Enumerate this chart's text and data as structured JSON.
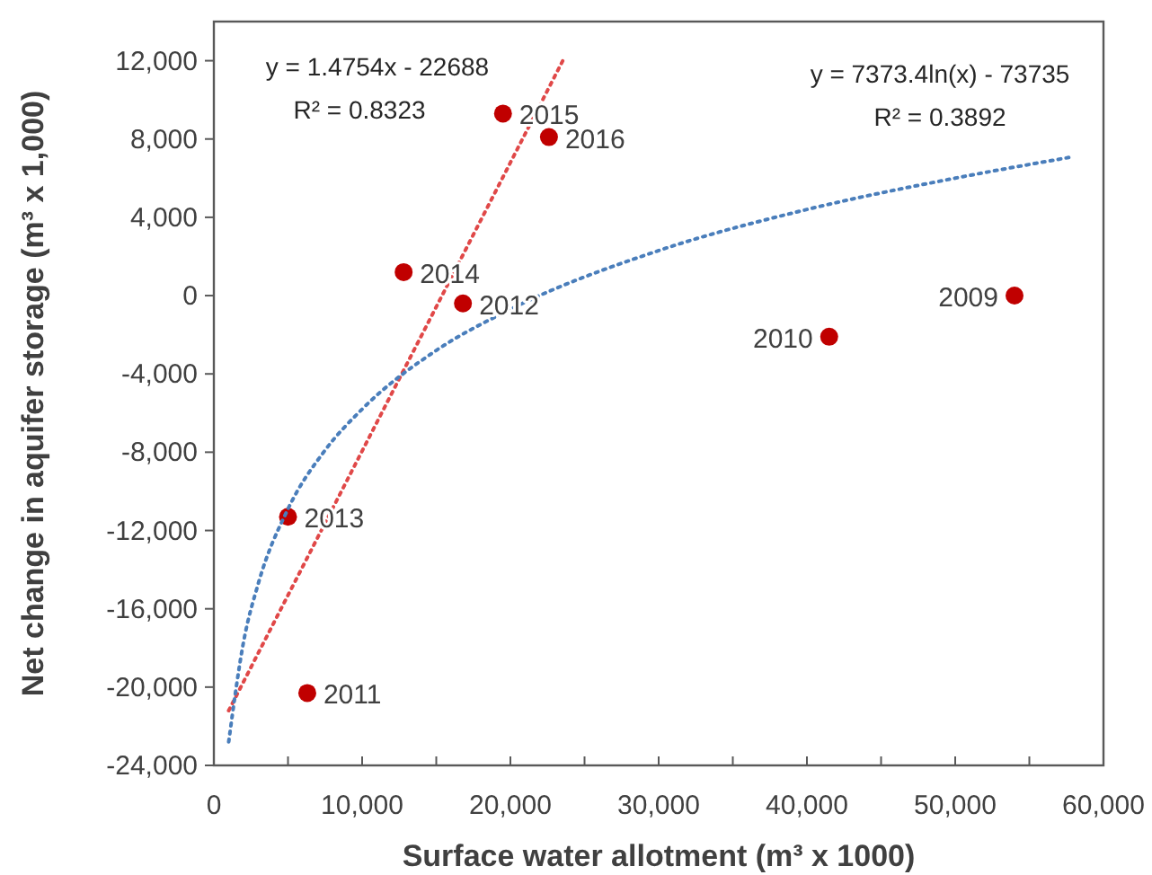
{
  "chart_data": {
    "type": "scatter",
    "xlabel": "Surface water allotment (m³ x 1000)",
    "ylabel": "Net change in aquifer storage (m³ x 1,000)",
    "xlim": [
      0,
      60000
    ],
    "xticks": [
      0,
      {
        "value": 5000,
        "label": null
      },
      {
        "value": 10000,
        "label": "10,000"
      },
      {
        "value": 15000,
        "label": null
      },
      {
        "value": 20000,
        "label": "20,000"
      },
      {
        "value": 25000,
        "label": null
      },
      {
        "value": 30000,
        "label": "30,000"
      },
      {
        "value": 35000,
        "label": null
      },
      {
        "value": 40000,
        "label": "40,000"
      },
      {
        "value": 45000,
        "label": null
      },
      {
        "value": 50000,
        "label": "50,000"
      },
      {
        "value": 55000,
        "label": null
      },
      {
        "value": 60000,
        "label": "60,000"
      }
    ],
    "ylim": [
      -24000,
      14000
    ],
    "yticks": [
      {
        "value": -24000,
        "label": "-24,000"
      },
      {
        "value": -20000,
        "label": "-20,000"
      },
      {
        "value": -16000,
        "label": "-16,000"
      },
      {
        "value": -12000,
        "label": "-12,000"
      },
      {
        "value": -8000,
        "label": "-8,000"
      },
      {
        "value": -4000,
        "label": "-4,000"
      },
      0,
      {
        "value": 4000,
        "label": "4,000"
      },
      {
        "value": 8000,
        "label": "8,000"
      },
      {
        "value": 12000,
        "label": "12,000"
      }
    ],
    "grid": false,
    "series": [
      {
        "color": "#c00000",
        "marker": "circle",
        "x": [
          54000,
          41500,
          6300,
          16800,
          5000,
          12800,
          19500,
          22600
        ],
        "values": [
          0,
          -2100,
          -20300,
          -400,
          -11300,
          1200,
          9300,
          8100
        ]
      },
      {
        "type": "line",
        "color": "#e04848",
        "line_style": "dotted",
        "marker": "none",
        "x": [
          1000,
          23600
        ],
        "values": [
          -21200,
          12100
        ]
      },
      {
        "type": "line",
        "color": "#4a7ebb",
        "line_style": "dotted",
        "marker": "none",
        "x": [
          1000,
          2000,
          3000,
          5000,
          7500,
          10000,
          15000,
          20000,
          30000,
          40000,
          50000,
          58000
        ],
        "values": [
          -22800,
          -17700,
          -14700,
          -10900,
          -7900,
          -5800,
          -2800,
          -700,
          2300,
          4400,
          6000,
          7100
        ]
      }
    ],
    "annotations": [
      "y = 1.4754x - 22688",
      "R² = 0.8323",
      "y = 7373.4ln(x) - 73735",
      "R² = 0.3892",
      {
        "text": "2009",
        "x": 54000,
        "y": 0
      },
      {
        "text": "2010",
        "x": 41500,
        "y": -2100
      },
      {
        "text": "2011",
        "x": 6300,
        "y": -20300
      },
      {
        "text": "2012",
        "x": 16800,
        "y": -400
      },
      {
        "text": "2013",
        "x": 5000,
        "y": -11300
      },
      {
        "text": "2014",
        "x": 12800,
        "y": 1200
      },
      {
        "text": "2015",
        "x": 19500,
        "y": 9300
      },
      {
        "text": "2016",
        "x": 22600,
        "y": 8100
      }
    ]
  }
}
